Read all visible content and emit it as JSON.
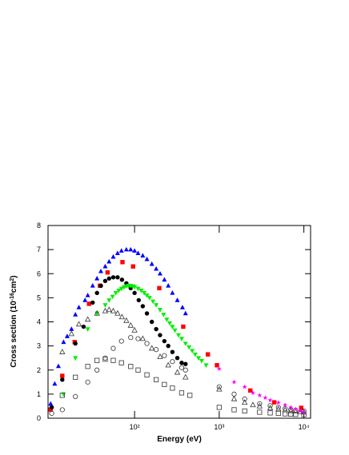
{
  "chart_data": {
    "type": "scatter",
    "x_label": "Energy (eV)",
    "y_label_parts": [
      "Cross section (10",
      "-16",
      "cm",
      "2",
      ")"
    ],
    "xlim": [
      9.5,
      12000
    ],
    "ylim": [
      0,
      8
    ],
    "log_x": true,
    "xticks": [
      {
        "value": 100,
        "label": "10²"
      },
      {
        "value": 1000,
        "label": "10³"
      },
      {
        "value": 10000,
        "label": "10⁴"
      }
    ],
    "yticks": [
      0,
      1,
      2,
      3,
      4,
      5,
      6,
      7,
      8
    ],
    "series": [
      {
        "color": "#0000ff",
        "marker": "triangle-up",
        "filled": true,
        "x": [
          10.2,
          11.4,
          12.6,
          14.5,
          16,
          18,
          20,
          22,
          26,
          28,
          32,
          36,
          40,
          45,
          50,
          56,
          63,
          70,
          80,
          90,
          100,
          110,
          125,
          140,
          160,
          180,
          200,
          225,
          250,
          280,
          320,
          368,
          400
        ],
        "values": [
          0.6,
          1.43,
          2.16,
          3.16,
          3.4,
          3.7,
          4.3,
          4.6,
          4.9,
          5.1,
          5.5,
          5.8,
          6.1,
          6.3,
          6.5,
          6.7,
          6.85,
          6.95,
          7.0,
          7.0,
          6.95,
          6.85,
          6.75,
          6.6,
          6.4,
          6.2,
          6.0,
          5.75,
          5.5,
          5.2,
          4.9,
          4.6,
          4.35
        ]
      },
      {
        "color": "#ff0000",
        "marker": "square",
        "filled": true,
        "x": [
          10.2,
          14,
          19.6,
          29,
          39,
          48,
          72,
          96,
          196,
          376,
          735,
          940,
          2330,
          4470,
          9300
        ],
        "values": [
          0.36,
          1.76,
          3.16,
          4.75,
          5.5,
          6.05,
          6.48,
          6.3,
          5.4,
          3.8,
          2.65,
          2.2,
          1.15,
          0.66,
          0.43
        ]
      },
      {
        "color": "#000000",
        "marker": "circle",
        "filled": true,
        "x": [
          10.5,
          14,
          20,
          25,
          32,
          36,
          40,
          45,
          50,
          56,
          63,
          71,
          80,
          90,
          100,
          112,
          125,
          140,
          160,
          180,
          200,
          225,
          250,
          280,
          320,
          360,
          400
        ],
        "values": [
          0.45,
          1.6,
          3.1,
          3.8,
          4.8,
          5.2,
          5.5,
          5.7,
          5.8,
          5.85,
          5.85,
          5.75,
          5.6,
          5.4,
          5.2,
          4.9,
          4.65,
          4.35,
          4.0,
          3.7,
          3.45,
          3.2,
          3.0,
          2.75,
          2.5,
          2.3,
          2.25
        ]
      },
      {
        "color": "#00ee00",
        "marker": "triangle-down",
        "filled": true,
        "x": [
          14.5,
          20,
          28,
          36,
          45,
          50,
          55,
          60,
          65,
          70,
          75,
          80,
          85,
          90,
          95,
          100,
          110,
          120,
          130,
          140,
          150,
          165,
          180,
          200,
          220,
          240,
          260,
          280,
          300,
          330,
          360,
          400,
          440,
          480,
          520,
          570,
          620,
          700
        ],
        "values": [
          1.0,
          2.5,
          3.7,
          4.35,
          4.7,
          4.9,
          5.05,
          5.2,
          5.3,
          5.38,
          5.44,
          5.48,
          5.5,
          5.5,
          5.48,
          5.45,
          5.38,
          5.3,
          5.2,
          5.1,
          5.0,
          4.85,
          4.7,
          4.5,
          4.3,
          4.1,
          3.95,
          3.8,
          3.65,
          3.45,
          3.3,
          3.1,
          2.95,
          2.8,
          2.65,
          2.5,
          2.38,
          2.2
        ]
      },
      {
        "color": "#333333",
        "marker": "triangle-up",
        "filled": false,
        "x": [
          14,
          18,
          22,
          28,
          36,
          45,
          50,
          56,
          63,
          71,
          80,
          90,
          100,
          125,
          160,
          200,
          250,
          320,
          400,
          1000,
          1500,
          2000,
          2500,
          3000,
          4000,
          5000,
          6000,
          7000,
          8000,
          9000,
          10000
        ],
        "values": [
          2.75,
          3.5,
          3.9,
          4.1,
          4.35,
          4.45,
          4.5,
          4.45,
          4.35,
          4.2,
          4.05,
          3.85,
          3.65,
          3.3,
          2.9,
          2.55,
          2.2,
          1.9,
          1.7,
          1.2,
          0.8,
          0.65,
          0.55,
          0.5,
          0.42,
          0.38,
          0.34,
          0.3,
          0.28,
          0.26,
          0.25
        ]
      },
      {
        "color": "#333333",
        "marker": "circle",
        "filled": false,
        "x": [
          10.5,
          14,
          20,
          28,
          36,
          45,
          56,
          70,
          90,
          110,
          140,
          180,
          225,
          280,
          360,
          400,
          1000,
          1500,
          2000,
          3000,
          4000,
          5000,
          6000,
          7000,
          8000,
          10000
        ],
        "values": [
          0.2,
          0.35,
          0.9,
          1.5,
          2.0,
          2.5,
          2.9,
          3.2,
          3.35,
          3.3,
          3.1,
          2.85,
          2.6,
          2.35,
          2.1,
          2.0,
          1.3,
          1.0,
          0.8,
          0.6,
          0.52,
          0.45,
          0.4,
          0.36,
          0.33,
          0.3
        ]
      },
      {
        "color": "#333333",
        "marker": "square",
        "filled": false,
        "x": [
          14,
          20,
          28,
          36,
          45,
          56,
          70,
          90,
          110,
          140,
          180,
          225,
          280,
          360,
          450,
          1000,
          1500,
          2000,
          3000,
          4000,
          5000,
          6000,
          7000,
          8000,
          10000
        ],
        "values": [
          0.95,
          1.7,
          2.15,
          2.4,
          2.45,
          2.4,
          2.3,
          2.15,
          2.0,
          1.8,
          1.6,
          1.4,
          1.25,
          1.05,
          0.95,
          0.45,
          0.35,
          0.3,
          0.25,
          0.22,
          0.2,
          0.18,
          0.17,
          0.16,
          0.15
        ]
      },
      {
        "color": "#ff00ff",
        "marker": "star",
        "filled": true,
        "x": [
          1000,
          1500,
          2000,
          2500,
          3000,
          3500,
          4000,
          5000,
          6000,
          7000,
          8000,
          9000,
          10000
        ],
        "values": [
          2.05,
          1.5,
          1.3,
          1.05,
          0.95,
          0.85,
          0.75,
          0.65,
          0.55,
          0.45,
          0.38,
          0.3,
          0.25
        ]
      }
    ]
  }
}
